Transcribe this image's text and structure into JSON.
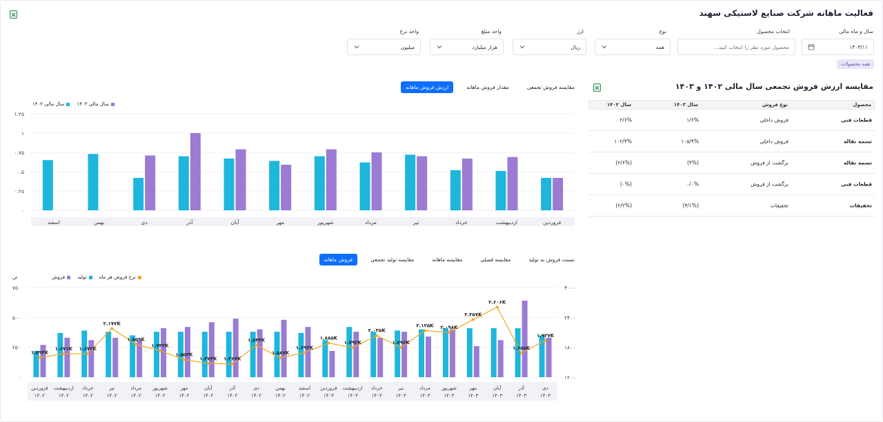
{
  "page": {
    "title": "فعالیت ماهانه شرکت صنایع لاستیکی سهند"
  },
  "filters": {
    "fiscal": {
      "label": "سال و ماه مالی",
      "value": "۱۴۰۳/۱۱"
    },
    "product": {
      "label": "انتخاب محصول",
      "placeholder": "محصول مورد نظر را انتخاب کنید..."
    },
    "type": {
      "label": "نوع",
      "value": "همه"
    },
    "currency": {
      "label": "ارز",
      "value": "ریال"
    },
    "amount_unit": {
      "label": "واحد مبلغ",
      "value": "هزار میلیارد"
    },
    "rate_unit": {
      "label": "واحد نرخ",
      "value": "میلیون"
    },
    "all_products_badge": "همه محصولات"
  },
  "summary": {
    "title": "مقایسه ارزش فروش تجمعی سال مالی ۱۴۰۲ و ۱۴۰۳",
    "headers": [
      "محصول",
      "نوع فروش",
      "سال ۱۴۰۳",
      "سال ۱۴۰۲"
    ],
    "rows": [
      [
        "قطعات فنی",
        "فروش داخلی",
        "۱/۶%",
        "۲/۶%"
      ],
      [
        "تسمه نقاله",
        "فروش داخلی",
        "۱۰۵/۴%",
        "۱۰۲/۳%"
      ],
      [
        "تسمه نقاله",
        "برگشت از فروش",
        "(۴%)",
        "(۲/۶%)"
      ],
      [
        "قطعات فنی",
        "برگشت از فروش",
        "۰/۰%",
        "(۰%)"
      ],
      [
        "تخفیفات",
        "تخفیفات",
        "(۳/۱%)",
        "(۲/۲%)"
      ]
    ]
  },
  "top_chart_tabs": [
    "ارزش فروش ماهانه",
    "مقدار فروش ماهانه",
    "مقایسه فروش تجمعی"
  ],
  "bottom_chart_tabs": [
    "فروش ماهانه",
    "مقایسه تولید تجمعی",
    "مقایسه ماهانه",
    "مقایسه فصلی",
    "نسبت فروش به تولید"
  ],
  "colors": {
    "cyan": "#1fb6dc",
    "purple": "#9b7bd4",
    "orange": "#f5a623",
    "accent": "#0d6efd"
  },
  "icons": {
    "export": "excel-export-icon",
    "calendar": "calendar-icon",
    "chevron": "chevron-down-icon"
  },
  "chart_data": [
    {
      "type": "bar",
      "legend": [
        "سال مالی ۱۴۰۳",
        "سال مالی ۱۴۰۲"
      ],
      "yticks": [
        "۰",
        "۰.۲۵",
        "۰.۵",
        "۰.۷۵",
        "۱",
        "۱.۲۵"
      ],
      "ylim": [
        0,
        1.25
      ],
      "categories": [
        "فروردین",
        "اردیبهشت",
        "خرداد",
        "تیر",
        "مرداد",
        "شهریور",
        "مهر",
        "آبان",
        "آذر",
        "دی",
        "بهمن",
        "اسفند"
      ],
      "series": [
        {
          "name": "سال مالی ۱۴۰۳",
          "values": [
            0.42,
            0.69,
            0.67,
            0.7,
            0.75,
            0.79,
            0.59,
            0.79,
            1.0,
            0.71,
            null,
            null
          ]
        },
        {
          "name": "سال مالی ۱۴۰۲",
          "values": [
            0.42,
            0.51,
            0.52,
            0.72,
            0.62,
            0.7,
            0.64,
            0.67,
            0.7,
            0.42,
            0.73,
            0.65
          ]
        }
      ]
    },
    {
      "type": "bar",
      "legend": [
        "فروش",
        "تولید",
        "نرخ فروش هر ماه"
      ],
      "left_axis_label": "تن",
      "yticks_left": [
        "۰",
        "۲۵۰",
        "۵۰۰",
        "۷۵۰"
      ],
      "ylim_left": [
        0,
        750
      ],
      "yticks_right": [
        "۱۲۰۰",
        "۱۸۰۰",
        "۲۴۰۰",
        "۳۰۰۰"
      ],
      "ylim_right": [
        1200,
        3000
      ],
      "categories": [
        "فروردین ۱۴۰۲",
        "اردیبهشت ۱۴۰۲",
        "خرداد ۱۴۰۲",
        "تیر ۱۴۰۲",
        "مرداد ۱۴۰۲",
        "شهریور ۱۴۰۲",
        "مهر ۱۴۰۲",
        "آبان ۱۴۰۲",
        "آذر ۱۴۰۲",
        "دی ۱۴۰۲",
        "بهمن ۱۴۰۲",
        "اسفند ۱۴۰۲",
        "فروردین ۱۴۰۳",
        "اردیبهشت ۱۴۰۳",
        "خرداد ۱۴۰۳",
        "تیر ۱۴۰۳",
        "مرداد ۱۴۰۳",
        "شهریور ۱۴۰۳",
        "مهر ۱۴۰۳",
        "آبان ۱۴۰۳",
        "آذر ۱۴۰۳",
        "دی ۱۴۰۳"
      ],
      "series": [
        {
          "name": "تولید",
          "values": [
            220,
            370,
            390,
            380,
            350,
            380,
            380,
            380,
            380,
            380,
            380,
            370,
            310,
            420,
            380,
            390,
            400,
            410,
            410,
            410,
            410,
            350
          ]
        },
        {
          "name": "فروش",
          "values": [
            270,
            330,
            310,
            330,
            310,
            410,
            420,
            460,
            490,
            400,
            480,
            420,
            220,
            380,
            330,
            380,
            340,
            400,
            260,
            310,
            640,
            330
          ]
        },
        {
          "name": "نرخ فروش هر ماه",
          "values": [
            1594,
            1671,
            1672,
            2177,
            1859,
            1732,
            1553,
            1473,
            1467,
            1844,
            1587,
            1693,
            1885,
            1792,
            2035,
            1796,
            2135,
            2098,
            2357,
            2606,
            1685,
            1937
          ]
        }
      ],
      "point_labels": [
        "۱.۵۹۴K",
        "۱.۶۷۱K",
        "۱.۶۷۲K",
        "۲.۱۷۷K",
        "۱.۸۵۹K",
        "۱.۷۳۲K",
        "۱.۵۵۳K",
        "۱.۴۷۳K",
        "۱.۴۶۷K",
        "۱.۸۴۴K",
        "۱.۵۸۷K",
        "۱.۶۹۳K",
        "۱.۸۸۵K",
        "۱.۷۹۲K",
        "۲.۰۳۵K",
        "۱.۷۹۶K",
        "۲.۱۳۵K",
        "۲.۰۹۸K",
        "۲.۳۵۷K",
        "۲.۶۰۶K",
        "۱.۶۸۵K",
        "۱.۹۳۷K"
      ]
    }
  ]
}
